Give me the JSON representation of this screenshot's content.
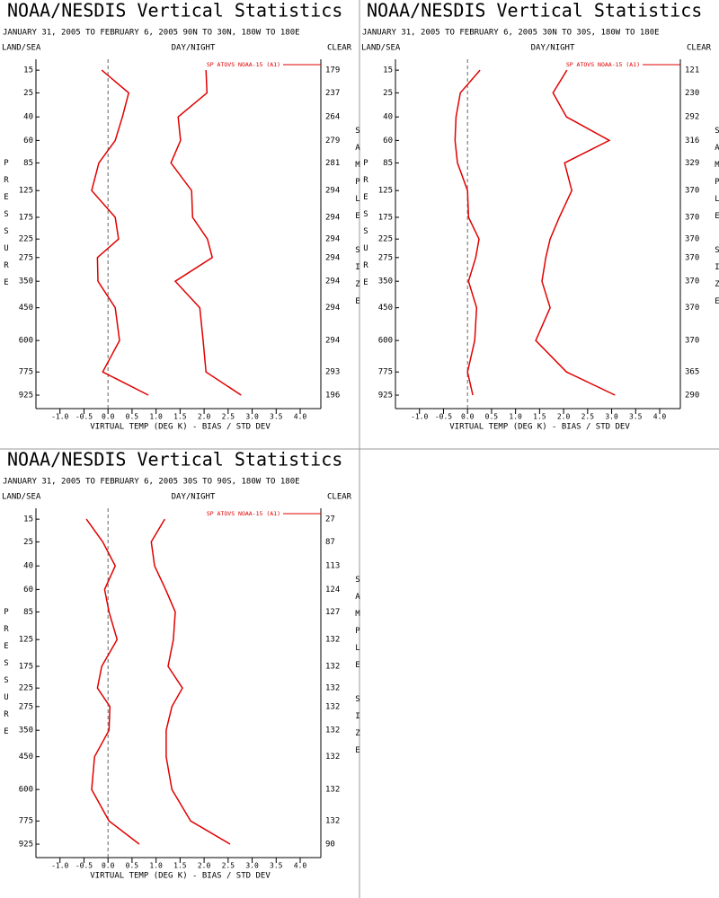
{
  "chart_data": [
    {
      "type": "line",
      "title": "NOAA/NESDIS Vertical Statistics",
      "subtitle": "JANUARY 31, 2005 TO FEBRUARY 6, 2005 90N TO 30N, 180W TO 180E",
      "left_header": "LAND/SEA",
      "center_header": "DAY/NIGHT",
      "right_header": "CLEAR",
      "ylabel": "PRESSURE",
      "y2label": "SAMPLE SIZE",
      "xlabel": "VIRTUAL TEMP (DEG K) - BIAS / STD DEV",
      "y": [
        15,
        25,
        40,
        60,
        85,
        125,
        175,
        225,
        275,
        350,
        450,
        600,
        775,
        925
      ],
      "yticks": [
        15,
        25,
        40,
        60,
        85,
        125,
        175,
        225,
        275,
        350,
        450,
        600,
        775,
        925
      ],
      "ylim": [
        11.4,
        1021
      ],
      "yscale": "power",
      "yexponent": 0.286,
      "xlim": [
        -1.5,
        4.43
      ],
      "xticks": [
        {
          "value": -1,
          "label": "-1.0"
        },
        -0.5,
        {
          "value": 0,
          "label": "0.0"
        },
        0.5,
        {
          "value": 1,
          "label": "1.0"
        },
        1.5,
        {
          "value": 2,
          "label": "2.0"
        },
        2.5,
        {
          "value": 3,
          "label": "3.0"
        },
        3.5,
        {
          "value": 4,
          "label": "4.0"
        }
      ],
      "sample_size": [
        179,
        237,
        264,
        279,
        281,
        294,
        294,
        294,
        294,
        294,
        294,
        294,
        293,
        196
      ],
      "series": [
        {
          "name": "SP ATOVS NOAA-15 (A1)",
          "color": "#e00000",
          "bias": [
            -0.13,
            0.43,
            0.3,
            0.15,
            -0.19,
            -0.34,
            0.15,
            0.22,
            -0.22,
            -0.21,
            0.15,
            0.24,
            -0.11,
            0.84
          ],
          "std_dev": [
            2.04,
            2.06,
            1.46,
            1.51,
            1.31,
            1.74,
            1.76,
            2.07,
            2.17,
            1.4,
            1.91,
            1.98,
            2.04,
            2.77
          ]
        }
      ]
    },
    {
      "type": "line",
      "title": "NOAA/NESDIS Vertical Statistics",
      "subtitle": "JANUARY 31, 2005 TO FEBRUARY 6, 2005 30N TO 30S, 180W TO 180E",
      "left_header": "LAND/SEA",
      "center_header": "DAY/NIGHT",
      "right_header": "CLEAR",
      "ylabel": "PRESSURE",
      "y2label": "SAMPLE SIZE",
      "xlabel": "VIRTUAL TEMP (DEG K) - BIAS / STD DEV",
      "y": [
        15,
        25,
        40,
        60,
        85,
        125,
        175,
        225,
        275,
        350,
        450,
        600,
        775,
        925
      ],
      "yticks": [
        15,
        25,
        40,
        60,
        85,
        125,
        175,
        225,
        275,
        350,
        450,
        600,
        775,
        925
      ],
      "ylim": [
        11.4,
        1021
      ],
      "yscale": "power",
      "yexponent": 0.286,
      "xlim": [
        -1.5,
        4.43
      ],
      "xticks": [
        {
          "value": -1,
          "label": "-1.0"
        },
        -0.5,
        {
          "value": 0,
          "label": "0.0"
        },
        0.5,
        {
          "value": 1,
          "label": "1.0"
        },
        1.5,
        {
          "value": 2,
          "label": "2.0"
        },
        2.5,
        {
          "value": 3,
          "label": "3.0"
        },
        3.5,
        {
          "value": 4,
          "label": "4.0"
        }
      ],
      "sample_size": [
        121,
        230,
        292,
        316,
        329,
        370,
        370,
        370,
        370,
        370,
        370,
        370,
        365,
        290
      ],
      "series": [
        {
          "name": "SP ATOVS NOAA-15 (A1)",
          "color": "#e00000",
          "bias": [
            0.26,
            -0.15,
            -0.24,
            -0.26,
            -0.21,
            0.0,
            0.02,
            0.24,
            0.17,
            0.02,
            0.19,
            0.15,
            0.0,
            0.11
          ],
          "std_dev": [
            2.07,
            1.78,
            2.06,
            2.95,
            2.02,
            2.17,
            1.91,
            1.72,
            1.63,
            1.55,
            1.72,
            1.42,
            2.06,
            3.07
          ]
        }
      ]
    },
    {
      "type": "line",
      "title": "NOAA/NESDIS Vertical Statistics",
      "subtitle": "JANUARY 31, 2005 TO FEBRUARY 6, 2005 30S TO 90S, 180W TO 180E",
      "left_header": "LAND/SEA",
      "center_header": "DAY/NIGHT",
      "right_header": "CLEAR",
      "ylabel": "PRESSURE",
      "y2label": "SAMPLE SIZE",
      "xlabel": "VIRTUAL TEMP (DEG K) - BIAS / STD DEV",
      "y": [
        15,
        25,
        40,
        60,
        85,
        125,
        175,
        225,
        275,
        350,
        450,
        600,
        775,
        925
      ],
      "yticks": [
        15,
        25,
        40,
        60,
        85,
        125,
        175,
        225,
        275,
        350,
        450,
        600,
        775,
        925
      ],
      "ylim": [
        11.4,
        1021
      ],
      "yscale": "power",
      "yexponent": 0.286,
      "xlim": [
        -1.5,
        4.43
      ],
      "xticks": [
        {
          "value": -1,
          "label": "-1.0"
        },
        -0.5,
        {
          "value": 0,
          "label": "0.0"
        },
        0.5,
        {
          "value": 1,
          "label": "1.0"
        },
        1.5,
        {
          "value": 2,
          "label": "2.0"
        },
        2.5,
        {
          "value": 3,
          "label": "3.0"
        },
        3.5,
        {
          "value": 4,
          "label": "4.0"
        }
      ],
      "sample_size": [
        27,
        87,
        113,
        124,
        127,
        132,
        132,
        132,
        132,
        132,
        132,
        132,
        132,
        90
      ],
      "series": [
        {
          "name": "SP ATOVS NOAA-15 (A1)",
          "color": "#e00000",
          "bias": [
            -0.45,
            -0.11,
            0.15,
            -0.07,
            0.02,
            0.19,
            -0.13,
            -0.22,
            0.04,
            0.02,
            -0.28,
            -0.34,
            0.02,
            0.65
          ],
          "std_dev": [
            1.18,
            0.9,
            0.97,
            1.2,
            1.4,
            1.36,
            1.25,
            1.55,
            1.33,
            1.21,
            1.21,
            1.33,
            1.72,
            2.54
          ]
        }
      ]
    }
  ]
}
